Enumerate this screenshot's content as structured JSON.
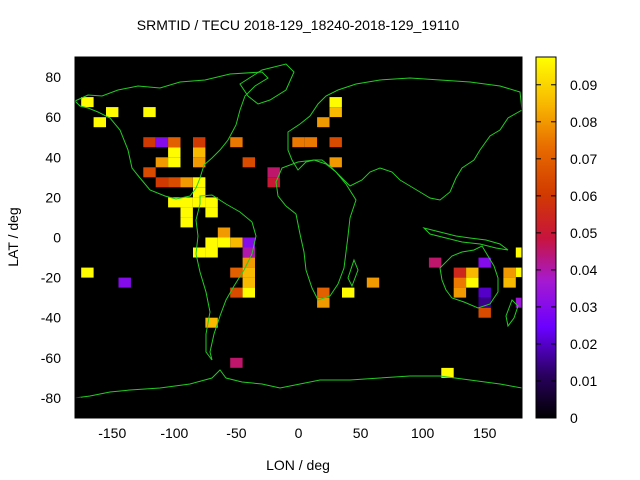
{
  "chart_data": {
    "type": "heatmap",
    "title": "SRMTID / TECU 2018-129_18240-2018-129_19110",
    "xlabel": "LON / deg",
    "ylabel": "LAT / deg",
    "xlim": [
      -180,
      180
    ],
    "ylim": [
      -90,
      90
    ],
    "xticks": [
      -150,
      -100,
      -50,
      0,
      50,
      100,
      150
    ],
    "yticks": [
      -80,
      -60,
      -40,
      -20,
      0,
      20,
      40,
      60,
      80
    ],
    "colorbar": {
      "range": [
        0,
        0.0975
      ],
      "ticks": [
        0,
        0.01,
        0.02,
        0.03,
        0.04,
        0.05,
        0.06,
        0.07,
        0.08,
        0.09
      ],
      "tick_labels": [
        "0",
        "0.01",
        "0.02",
        "0.03",
        "0.04",
        "0.05",
        "0.06",
        "0.07",
        "0.08",
        "0.09"
      ],
      "palette": "black-blue-magenta-red-orange-yellow"
    },
    "cell_size_deg": [
      10,
      5
    ],
    "cells": [
      {
        "lon": -170,
        "lat": 67.5,
        "v": 0.097
      },
      {
        "lon": -160,
        "lat": 57.5,
        "v": 0.097
      },
      {
        "lon": -150,
        "lat": 62.5,
        "v": 0.097
      },
      {
        "lon": -120,
        "lat": 62.5,
        "v": 0.097
      },
      {
        "lon": -120,
        "lat": 47.5,
        "v": 0.06
      },
      {
        "lon": -110,
        "lat": 47.5,
        "v": 0.03
      },
      {
        "lon": -100,
        "lat": 47.5,
        "v": 0.07
      },
      {
        "lon": -100,
        "lat": 42.5,
        "v": 0.097
      },
      {
        "lon": -110,
        "lat": 37.5,
        "v": 0.08
      },
      {
        "lon": -100,
        "lat": 37.5,
        "v": 0.097
      },
      {
        "lon": -120,
        "lat": 32.5,
        "v": 0.065
      },
      {
        "lon": -110,
        "lat": 27.5,
        "v": 0.06
      },
      {
        "lon": -100,
        "lat": 27.5,
        "v": 0.065
      },
      {
        "lon": -90,
        "lat": 27.5,
        "v": 0.08
      },
      {
        "lon": -80,
        "lat": 47.5,
        "v": 0.06
      },
      {
        "lon": -80,
        "lat": 42.5,
        "v": 0.085
      },
      {
        "lon": -80,
        "lat": 37.5,
        "v": 0.08
      },
      {
        "lon": -50,
        "lat": 47.5,
        "v": 0.075
      },
      {
        "lon": -40,
        "lat": 37.5,
        "v": 0.065
      },
      {
        "lon": -20,
        "lat": 32.5,
        "v": 0.045
      },
      {
        "lon": -20,
        "lat": 27.5,
        "v": 0.05
      },
      {
        "lon": -80,
        "lat": 27.5,
        "v": 0.097
      },
      {
        "lon": -80,
        "lat": 22.5,
        "v": 0.097
      },
      {
        "lon": -100,
        "lat": 17.5,
        "v": 0.097
      },
      {
        "lon": -90,
        "lat": 17.5,
        "v": 0.097
      },
      {
        "lon": -80,
        "lat": 17.5,
        "v": 0.097
      },
      {
        "lon": -70,
        "lat": 17.5,
        "v": 0.097
      },
      {
        "lon": -90,
        "lat": 12.5,
        "v": 0.097
      },
      {
        "lon": -70,
        "lat": 12.5,
        "v": 0.097
      },
      {
        "lon": -90,
        "lat": 7.5,
        "v": 0.097
      },
      {
        "lon": -60,
        "lat": 2.5,
        "v": 0.08
      },
      {
        "lon": -70,
        "lat": -2.5,
        "v": 0.097
      },
      {
        "lon": -60,
        "lat": -2.5,
        "v": 0.097
      },
      {
        "lon": -50,
        "lat": -2.5,
        "v": 0.085
      },
      {
        "lon": -40,
        "lat": -2.5,
        "v": 0.03
      },
      {
        "lon": -80,
        "lat": -7.5,
        "v": 0.097
      },
      {
        "lon": -70,
        "lat": -7.5,
        "v": 0.097
      },
      {
        "lon": -40,
        "lat": -7.5,
        "v": 0.04
      },
      {
        "lon": -40,
        "lat": -12.5,
        "v": 0.08
      },
      {
        "lon": -50,
        "lat": -17.5,
        "v": 0.07
      },
      {
        "lon": -40,
        "lat": -17.5,
        "v": 0.085
      },
      {
        "lon": -40,
        "lat": -22.5,
        "v": 0.085
      },
      {
        "lon": -50,
        "lat": -27.5,
        "v": 0.065
      },
      {
        "lon": -40,
        "lat": -27.5,
        "v": 0.097
      },
      {
        "lon": -70,
        "lat": -42.5,
        "v": 0.085
      },
      {
        "lon": -50,
        "lat": -62.5,
        "v": 0.045
      },
      {
        "lon": -170,
        "lat": -17.5,
        "v": 0.097
      },
      {
        "lon": -140,
        "lat": -22.5,
        "v": 0.03
      },
      {
        "lon": 0,
        "lat": 47.5,
        "v": 0.075
      },
      {
        "lon": 10,
        "lat": 47.5,
        "v": 0.075
      },
      {
        "lon": 20,
        "lat": 57.5,
        "v": 0.08
      },
      {
        "lon": 30,
        "lat": 67.5,
        "v": 0.097
      },
      {
        "lon": 30,
        "lat": 62.5,
        "v": 0.085
      },
      {
        "lon": 30,
        "lat": 47.5,
        "v": 0.065
      },
      {
        "lon": 30,
        "lat": 37.5,
        "v": 0.08
      },
      {
        "lon": 20,
        "lat": -27.5,
        "v": 0.07
      },
      {
        "lon": 20,
        "lat": -32.5,
        "v": 0.08
      },
      {
        "lon": 40,
        "lat": -27.5,
        "v": 0.097
      },
      {
        "lon": 60,
        "lat": -22.5,
        "v": 0.08
      },
      {
        "lon": 110,
        "lat": -12.5,
        "v": 0.045
      },
      {
        "lon": 130,
        "lat": -17.5,
        "v": 0.055
      },
      {
        "lon": 140,
        "lat": -17.5,
        "v": 0.085
      },
      {
        "lon": 150,
        "lat": -12.5,
        "v": 0.03
      },
      {
        "lon": 130,
        "lat": -22.5,
        "v": 0.075
      },
      {
        "lon": 140,
        "lat": -22.5,
        "v": 0.097
      },
      {
        "lon": 130,
        "lat": -27.5,
        "v": 0.08
      },
      {
        "lon": 150,
        "lat": -27.5,
        "v": 0.02
      },
      {
        "lon": 150,
        "lat": -37.5,
        "v": 0.065
      },
      {
        "lon": 150,
        "lat": -32.5,
        "v": 0.015
      },
      {
        "lon": 170,
        "lat": -17.5,
        "v": 0.08
      },
      {
        "lon": 180,
        "lat": -17.5,
        "v": 0.097
      },
      {
        "lon": 170,
        "lat": -22.5,
        "v": 0.085
      },
      {
        "lon": 180,
        "lat": -7.5,
        "v": 0.097
      },
      {
        "lon": 180,
        "lat": -32.5,
        "v": 0.035
      },
      {
        "lon": 120,
        "lat": -67.5,
        "v": 0.097
      }
    ]
  }
}
